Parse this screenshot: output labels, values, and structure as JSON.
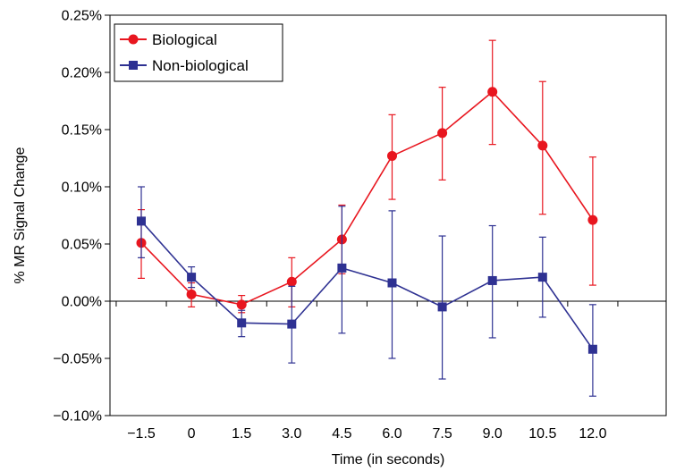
{
  "chart_data": {
    "type": "line",
    "xlabel": "Time (in seconds)",
    "ylabel": "% MR Signal Change",
    "x": [
      -1.5,
      0,
      1.5,
      3.0,
      4.5,
      6.0,
      7.5,
      9.0,
      10.5,
      12.0
    ],
    "x_tick_labels": [
      "−1.5",
      "0",
      "1.5",
      "3.0",
      "4.5",
      "6.0",
      "7.5",
      "9.0",
      "10.5",
      "12.0"
    ],
    "ylim": [
      -0.1,
      0.25
    ],
    "y_ticks": [
      -0.1,
      -0.05,
      0.0,
      0.05,
      0.1,
      0.15,
      0.2,
      0.25
    ],
    "y_tick_labels": [
      "−0.10%",
      "−0.05%",
      "0.00%",
      "0.05%",
      "0.10%",
      "0.15%",
      "0.20%",
      "0.25%"
    ],
    "legend_position": "top-left",
    "grid": false,
    "series": [
      {
        "name": "Biological",
        "color": "#e8161f",
        "marker": "circle",
        "values": [
          0.051,
          0.006,
          -0.003,
          0.017,
          0.054,
          0.127,
          0.147,
          0.183,
          0.136,
          0.071
        ],
        "err_low": [
          0.02,
          -0.005,
          -0.01,
          -0.005,
          0.024,
          0.089,
          0.106,
          0.137,
          0.076,
          0.014
        ],
        "err_high": [
          0.08,
          0.016,
          0.005,
          0.038,
          0.084,
          0.163,
          0.187,
          0.228,
          0.192,
          0.126
        ]
      },
      {
        "name": "Non-biological",
        "color": "#2e3192",
        "marker": "square",
        "values": [
          0.07,
          0.021,
          -0.019,
          -0.02,
          0.029,
          0.016,
          -0.005,
          0.018,
          0.021,
          -0.042
        ],
        "err_low": [
          0.038,
          0.012,
          -0.031,
          -0.054,
          -0.028,
          -0.05,
          -0.068,
          -0.032,
          -0.014,
          -0.083
        ],
        "err_high": [
          0.1,
          0.03,
          -0.008,
          0.013,
          0.083,
          0.079,
          0.057,
          0.066,
          0.056,
          -0.003
        ]
      }
    ]
  }
}
